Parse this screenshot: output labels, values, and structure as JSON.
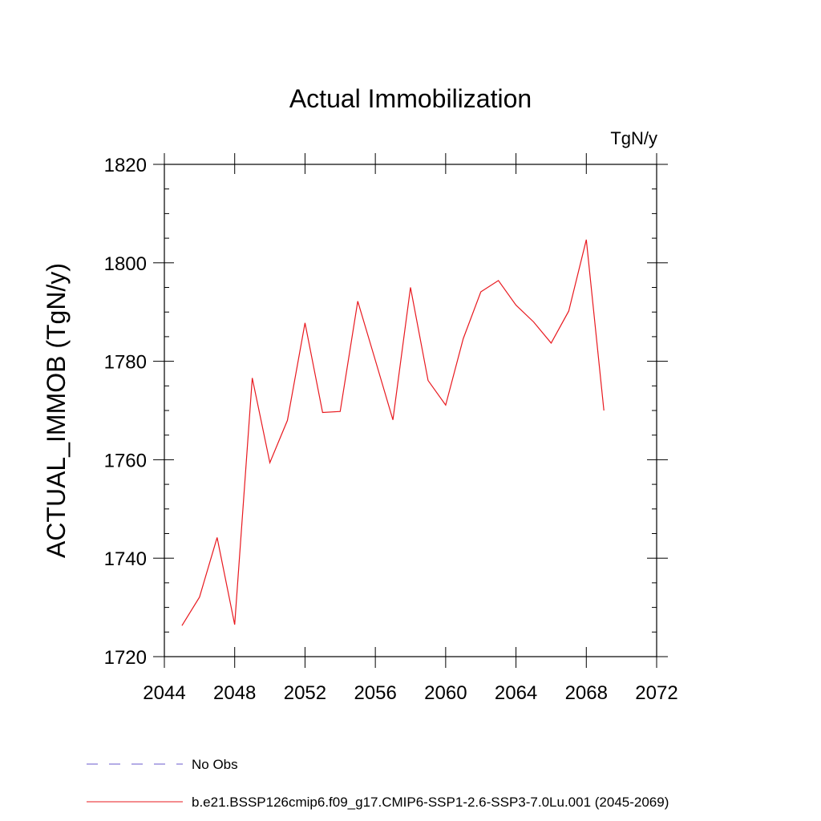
{
  "chart_data": {
    "type": "line",
    "title": "Actual Immobilization",
    "units_label": "TgN/y",
    "ylabel": "ACTUAL_IMMOB  (TgN/y)",
    "xlabel": "",
    "xlim": [
      2044,
      2072
    ],
    "ylim": [
      1720,
      1820
    ],
    "x_ticks": [
      2044,
      2048,
      2052,
      2056,
      2060,
      2064,
      2068,
      2072
    ],
    "y_ticks": [
      1720,
      1740,
      1760,
      1780,
      1800,
      1820
    ],
    "grid": false,
    "legend_position": "bottom",
    "series": [
      {
        "name": "No Obs",
        "color": "#6a5acd",
        "dash": "dashed",
        "x": [],
        "y": []
      },
      {
        "name": "b.e21.BSSP126cmip6.f09_g17.CMIP6-SSP1-2.6-SSP3-7.0Lu.001 (2045-2069)",
        "color": "#e8191f",
        "dash": "solid",
        "x": [
          2045,
          2046,
          2047,
          2048,
          2049,
          2050,
          2051,
          2052,
          2053,
          2054,
          2055,
          2056,
          2057,
          2058,
          2059,
          2060,
          2061,
          2062,
          2063,
          2064,
          2065,
          2066,
          2067,
          2068,
          2069
        ],
        "y": [
          1726.3,
          1732.1,
          1744.2,
          1726.5,
          1776.6,
          1759.4,
          1768.0,
          1787.8,
          1769.6,
          1769.8,
          1792.2,
          1780.2,
          1768.1,
          1795.0,
          1776.1,
          1771.1,
          1784.6,
          1794.1,
          1796.4,
          1791.4,
          1788.0,
          1783.7,
          1790.2,
          1804.7,
          1770.0
        ]
      }
    ]
  }
}
